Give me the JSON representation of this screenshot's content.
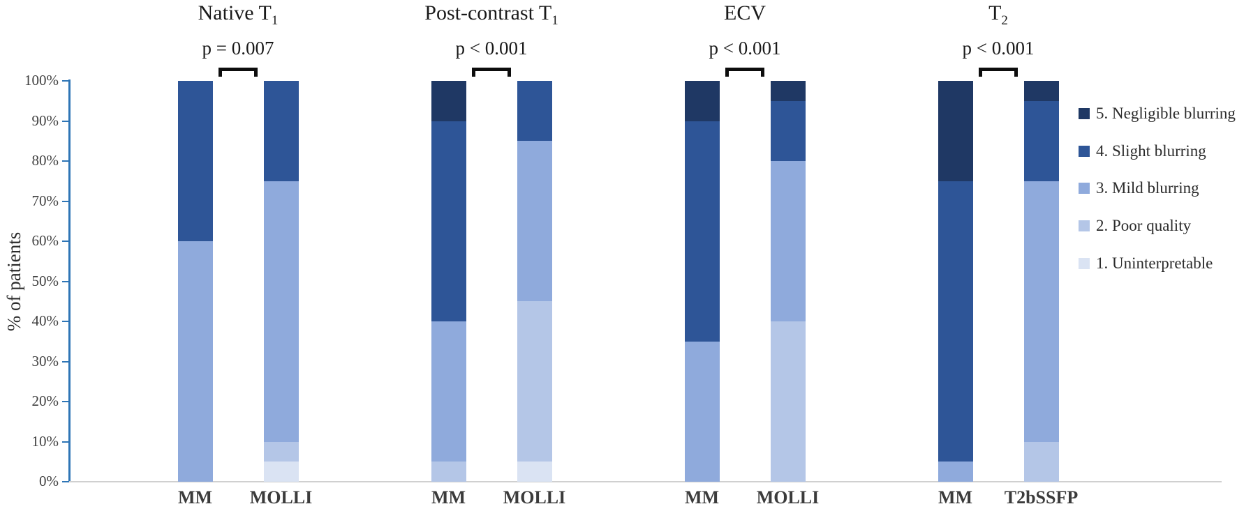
{
  "axes": {
    "ylabel": "% of patients",
    "y_ticks": [
      "0%",
      "10%",
      "20%",
      "30%",
      "40%",
      "50%",
      "60%",
      "70%",
      "80%",
      "90%",
      "100%"
    ]
  },
  "legend": {
    "items": [
      {
        "label": "5. Negligible blurring",
        "color": "#1f3864"
      },
      {
        "label": "4. Slight blurring",
        "color": "#2e5597"
      },
      {
        "label": "3. Mild blurring",
        "color": "#8faadc"
      },
      {
        "label": "2. Poor quality",
        "color": "#b4c6e7"
      },
      {
        "label": "1. Uninterpretable",
        "color": "#dae3f3"
      }
    ]
  },
  "chart_data": {
    "type": "bar",
    "stacked": true,
    "title": "",
    "ylabel": "% of patients",
    "ylim": [
      0,
      100
    ],
    "y_tick_step": 10,
    "grid": false,
    "legend_position": "right",
    "series_bottom_to_top": [
      "1. Uninterpretable",
      "2. Poor quality",
      "3. Mild blurring",
      "4. Slight blurring",
      "5. Negligible blurring"
    ],
    "series_colors_bottom_to_top": [
      "#dae3f3",
      "#b4c6e7",
      "#8faadc",
      "#2e5597",
      "#1f3864"
    ],
    "groups": [
      {
        "title_base": "Native T",
        "title_sub": "1",
        "p_label": "p = 0.007",
        "bars": [
          {
            "label": "MM",
            "values": [
              0,
              0,
              60,
              40,
              0
            ]
          },
          {
            "label": "MOLLI",
            "values": [
              5,
              5,
              65,
              25,
              0
            ]
          }
        ]
      },
      {
        "title_base": "Post-contrast T",
        "title_sub": "1",
        "p_label": "p < 0.001",
        "bars": [
          {
            "label": "MM",
            "values": [
              0,
              5,
              35,
              50,
              10
            ]
          },
          {
            "label": "MOLLI",
            "values": [
              5,
              40,
              40,
              15,
              0
            ]
          }
        ]
      },
      {
        "title_base": "ECV",
        "title_sub": "",
        "p_label": "p < 0.001",
        "bars": [
          {
            "label": "MM",
            "values": [
              0,
              0,
              35,
              55,
              10
            ]
          },
          {
            "label": "MOLLI",
            "values": [
              0,
              40,
              40,
              15,
              5
            ]
          }
        ]
      },
      {
        "title_base": "T",
        "title_sub": "2",
        "p_label": "p < 0.001",
        "bars": [
          {
            "label": "MM",
            "values": [
              0,
              0,
              5,
              70,
              25
            ]
          },
          {
            "label": "T2bSSFP",
            "values": [
              0,
              10,
              65,
              20,
              5
            ]
          }
        ]
      }
    ]
  }
}
